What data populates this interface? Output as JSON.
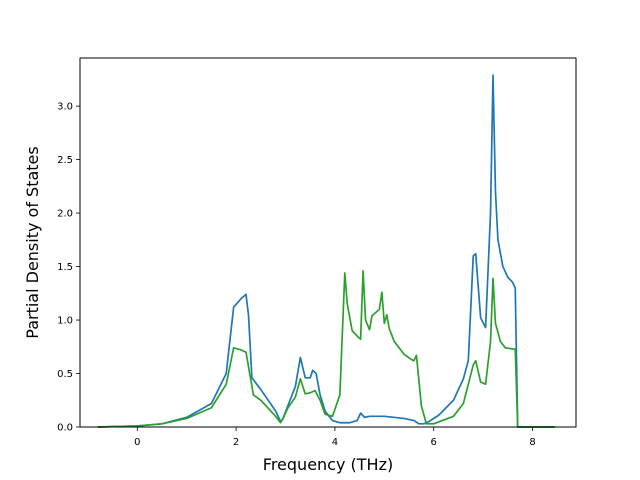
{
  "chart_data": {
    "type": "line",
    "title": "",
    "xlabel": "Frequency (THz)",
    "ylabel": "Partial Density of States",
    "xlim": [
      -1.16,
      8.88
    ],
    "ylim": [
      0.0,
      3.45
    ],
    "xticks": [
      0,
      2,
      4,
      6,
      8
    ],
    "xtick_labels": [
      "0",
      "2",
      "4",
      "6",
      "8"
    ],
    "yticks": [
      0.0,
      0.5,
      1.0,
      1.5,
      2.0,
      2.5,
      3.0
    ],
    "ytick_labels": [
      "0.0",
      "0.5",
      "1.0",
      "1.5",
      "2.0",
      "2.5",
      "3.0"
    ],
    "grid": false,
    "legend": false,
    "series": [
      {
        "color": "#1f77b4",
        "x": [
          -0.8,
          0.0,
          0.5,
          1.0,
          1.5,
          1.8,
          1.95,
          2.1,
          2.2,
          2.25,
          2.32,
          2.5,
          2.8,
          2.9,
          2.95,
          3.05,
          3.2,
          3.3,
          3.4,
          3.5,
          3.55,
          3.62,
          3.7,
          3.8,
          3.95,
          4.1,
          4.3,
          4.45,
          4.52,
          4.6,
          4.7,
          5.0,
          5.4,
          5.6,
          5.7,
          5.8,
          5.9,
          6.1,
          6.4,
          6.6,
          6.7,
          6.8,
          6.85,
          6.95,
          7.05,
          7.15,
          7.2,
          7.25,
          7.3,
          7.4,
          7.5,
          7.6,
          7.65,
          7.7,
          7.8,
          8.45
        ],
        "y": [
          0.0,
          0.01,
          0.03,
          0.09,
          0.22,
          0.5,
          1.12,
          1.2,
          1.24,
          1.05,
          0.46,
          0.35,
          0.15,
          0.05,
          0.08,
          0.2,
          0.38,
          0.65,
          0.46,
          0.46,
          0.53,
          0.5,
          0.3,
          0.15,
          0.06,
          0.04,
          0.04,
          0.06,
          0.13,
          0.09,
          0.1,
          0.1,
          0.08,
          0.06,
          0.03,
          0.03,
          0.05,
          0.11,
          0.25,
          0.45,
          0.62,
          1.6,
          1.62,
          1.02,
          0.93,
          2.0,
          3.29,
          2.2,
          1.75,
          1.5,
          1.4,
          1.35,
          1.3,
          0.0,
          0.0,
          0.0
        ]
      },
      {
        "color": "#2ca02c",
        "x": [
          -0.8,
          0.0,
          0.5,
          1.0,
          1.5,
          1.8,
          1.95,
          2.1,
          2.2,
          2.35,
          2.5,
          2.8,
          2.9,
          2.95,
          3.05,
          3.2,
          3.3,
          3.4,
          3.5,
          3.6,
          3.7,
          3.8,
          3.95,
          4.1,
          4.2,
          4.25,
          4.35,
          4.45,
          4.52,
          4.57,
          4.62,
          4.7,
          4.75,
          4.9,
          4.95,
          5.0,
          5.05,
          5.1,
          5.2,
          5.4,
          5.55,
          5.6,
          5.65,
          5.75,
          5.85,
          6.0,
          6.4,
          6.6,
          6.8,
          6.85,
          6.95,
          7.05,
          7.15,
          7.2,
          7.25,
          7.35,
          7.45,
          7.6,
          7.65,
          7.7,
          7.8,
          8.45
        ],
        "y": [
          0.0,
          0.01,
          0.03,
          0.08,
          0.18,
          0.4,
          0.74,
          0.72,
          0.7,
          0.3,
          0.25,
          0.1,
          0.04,
          0.08,
          0.18,
          0.28,
          0.45,
          0.31,
          0.32,
          0.34,
          0.25,
          0.12,
          0.1,
          0.3,
          1.44,
          1.15,
          0.9,
          0.85,
          0.82,
          1.46,
          1.0,
          0.91,
          1.04,
          1.1,
          1.26,
          0.97,
          1.05,
          0.92,
          0.8,
          0.68,
          0.63,
          0.62,
          0.67,
          0.2,
          0.03,
          0.03,
          0.1,
          0.22,
          0.58,
          0.62,
          0.42,
          0.4,
          0.8,
          1.39,
          0.97,
          0.8,
          0.74,
          0.73,
          0.73,
          0.0,
          0.0,
          0.0
        ]
      }
    ]
  }
}
